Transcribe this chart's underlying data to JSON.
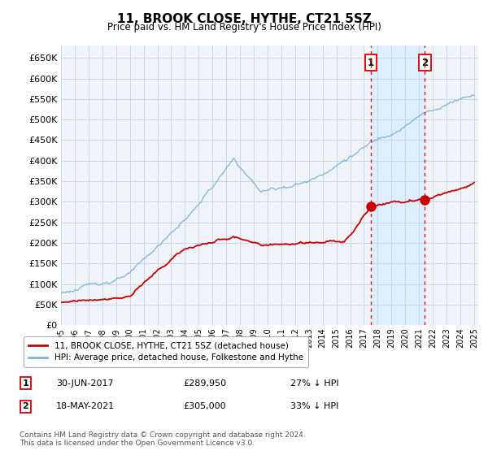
{
  "title": "11, BROOK CLOSE, HYTHE, CT21 5SZ",
  "subtitle": "Price paid vs. HM Land Registry's House Price Index (HPI)",
  "ylim": [
    0,
    680000
  ],
  "yticks": [
    0,
    50000,
    100000,
    150000,
    200000,
    250000,
    300000,
    350000,
    400000,
    450000,
    500000,
    550000,
    600000,
    650000
  ],
  "hpi_color": "#7ab4d8",
  "price_color": "#cc0000",
  "marker1_date": "30-JUN-2017",
  "marker1_price": 289950,
  "marker1_label": "27% ↓ HPI",
  "marker2_date": "18-MAY-2021",
  "marker2_price": 305000,
  "marker2_label": "33% ↓ HPI",
  "legend_property": "11, BROOK CLOSE, HYTHE, CT21 5SZ (detached house)",
  "legend_hpi": "HPI: Average price, detached house, Folkestone and Hythe",
  "footnote": "Contains HM Land Registry data © Crown copyright and database right 2024.\nThis data is licensed under the Open Government Licence v3.0.",
  "background_color": "#f0f4f8",
  "shade_color": "#ddeeff",
  "dotted_line_color": "#dd0000",
  "year1": 2017.5,
  "year2": 2021.42
}
